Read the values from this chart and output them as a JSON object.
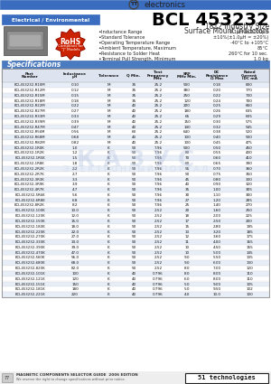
{
  "title": "BCL 453232",
  "subtitle1": "1812 Industry Size",
  "subtitle2": "Surface Mount Inductors",
  "header_label": "Electrical / Environmental",
  "bullet_points": [
    [
      "Inductance Range",
      "0.1μH to 1000μH"
    ],
    [
      "Standard Tolerance",
      "±10%(±1.0μH = ±20%)"
    ],
    [
      "Operating Temperature Range",
      "-40°C to +105°C"
    ],
    [
      "Ambient Temperature, Maximum",
      "85°C"
    ],
    [
      "Resistance to Solder Heat",
      "260°C for 10 sec."
    ],
    [
      "Terminal Pull Strength, Minimum",
      "1.0 kg"
    ]
  ],
  "spec_header": "Specifications",
  "table_data": [
    [
      "BCL453232-R10M",
      "0.10",
      "M",
      "35",
      "25.2",
      "500",
      "0.18",
      "800"
    ],
    [
      "BCL453232-R12M",
      "0.12",
      "M",
      "35",
      "25.2",
      "380",
      "0.20",
      "770"
    ],
    [
      "BCL453232-R15M",
      "0.15",
      "M",
      "35",
      "25.2",
      "250",
      "0.22",
      "730"
    ],
    [
      "BCL453232-R18M",
      "0.18",
      "M",
      "35",
      "25.2",
      "120",
      "0.24",
      "700"
    ],
    [
      "BCL453232-R22M",
      "0.22",
      "M",
      "40",
      "25.2",
      "200",
      "0.25",
      "660"
    ],
    [
      "BCL453232-R27M",
      "0.27",
      "M",
      "40",
      "25.2",
      "180",
      "0.26",
      "635"
    ],
    [
      "BCL453232-R33M",
      "0.33",
      "M",
      "40",
      "25.2",
      "65",
      "0.29",
      "605"
    ],
    [
      "BCL453232-R39M",
      "0.39",
      "M",
      "40",
      "25.2",
      "150",
      "0.30",
      "575"
    ],
    [
      "BCL453232-R47M",
      "0.47",
      "M",
      "40",
      "25.2",
      "140",
      "0.32",
      "545"
    ],
    [
      "BCL453232-R56M",
      "0.56",
      "M",
      "60",
      "25.2",
      "640",
      "0.38",
      "520"
    ],
    [
      "BCL453232-R68M",
      "0.68",
      "M",
      "40",
      "25.2",
      "100",
      "0.40",
      "500"
    ],
    [
      "BCL453232-R82M",
      "0.82",
      "M",
      "40",
      "25.2",
      "100",
      "0.45",
      "475"
    ],
    [
      "BCL453232-1R0K",
      "1.0",
      "K",
      "50",
      "7.96",
      "500",
      "0.50",
      "450"
    ],
    [
      "BCL453232-1R2K",
      "1.2",
      "K",
      "50",
      "7.96",
      "80",
      "0.55",
      "430"
    ],
    [
      "BCL453232-1R5K",
      "1.5",
      "K",
      "50",
      "7.96",
      "70",
      "0.60",
      "410"
    ],
    [
      "BCL453232-1R8K",
      "1.8",
      "K",
      "50",
      "7.96",
      "60",
      "0.65",
      "390"
    ],
    [
      "BCL453232-2R2K",
      "2.2",
      "K",
      "50",
      "7.96",
      "55",
      "0.70",
      "360"
    ],
    [
      "BCL453232-2R7K",
      "2.7",
      "K",
      "50",
      "7.96",
      "50",
      "0.75",
      "350"
    ],
    [
      "BCL453232-3R3K",
      "3.3",
      "K",
      "50",
      "7.96",
      "45",
      "0.80",
      "330"
    ],
    [
      "BCL453232-3R9K",
      "3.9",
      "K",
      "50",
      "7.96",
      "40",
      "0.90",
      "320"
    ],
    [
      "BCL453232-4R7K",
      "4.7",
      "K",
      "50",
      "7.96",
      "35",
      "1.00",
      "305"
    ],
    [
      "BCL453232-5R6K",
      "5.6",
      "K",
      "50",
      "7.96",
      "30",
      "1.10",
      "300"
    ],
    [
      "BCL453232-6R8K",
      "6.8",
      "K",
      "50",
      "7.96",
      "27",
      "1.20",
      "285"
    ],
    [
      "BCL453232-8R2K",
      "8.2",
      "K",
      "50",
      "7.96",
      "25",
      "1.40",
      "270"
    ],
    [
      "BCL453232-100K",
      "10.0",
      "K",
      "50",
      "2.52",
      "20",
      "1.60",
      "250"
    ],
    [
      "BCL453232-120K",
      "12.0",
      "K",
      "50",
      "2.52",
      "18",
      "2.00",
      "225"
    ],
    [
      "BCL453232-150K",
      "15.0",
      "K",
      "50",
      "2.52",
      "17",
      "2.50",
      "200"
    ],
    [
      "BCL453232-180K",
      "18.0",
      "K",
      "50",
      "2.52",
      "15",
      "2.80",
      "195"
    ],
    [
      "BCL453232-220K",
      "22.0",
      "K",
      "50",
      "2.52",
      "13",
      "3.20",
      "185"
    ],
    [
      "BCL453232-270K",
      "27.0",
      "K",
      "50",
      "2.52",
      "12",
      "3.60",
      "175"
    ],
    [
      "BCL453232-330K",
      "33.0",
      "K",
      "50",
      "2.52",
      "11",
      "4.00",
      "165"
    ],
    [
      "BCL453232-390K",
      "39.0",
      "K",
      "50",
      "2.52",
      "10",
      "4.50",
      "155"
    ],
    [
      "BCL453232-470K",
      "47.0",
      "K",
      "50",
      "2.52",
      "10",
      "5.00",
      "145"
    ],
    [
      "BCL453232-560K",
      "56.0",
      "K",
      "50",
      "2.52",
      "9.0",
      "5.50",
      "135"
    ],
    [
      "BCL453232-680K",
      "68.0",
      "K",
      "50",
      "2.52",
      "9.0",
      "6.00",
      "130"
    ],
    [
      "BCL453232-820K",
      "82.0",
      "K",
      "50",
      "2.52",
      "8.0",
      "7.00",
      "120"
    ],
    [
      "BCL453232-101K",
      "100",
      "K",
      "40",
      "0.796",
      "8.0",
      "8.00",
      "110"
    ],
    [
      "BCL453232-121K",
      "120",
      "K",
      "40",
      "0.796",
      "6.0",
      "8.00",
      "110"
    ],
    [
      "BCL453232-151K",
      "150",
      "K",
      "40",
      "0.796",
      "5.0",
      "9.00",
      "105"
    ],
    [
      "BCL453232-181K",
      "180",
      "K",
      "40",
      "0.796",
      "5.0",
      "9.50",
      "102"
    ],
    [
      "BCL453232-221K",
      "220",
      "K",
      "40",
      "0.796",
      "4.0",
      "10.0",
      "100"
    ]
  ],
  "col_header_lines": [
    [
      "Part",
      "Number"
    ],
    [
      "Inductance",
      "μH"
    ],
    [
      "Tolerance"
    ],
    [
      "Q Min."
    ],
    [
      "Test",
      "Frequency",
      "MHz"
    ],
    [
      "SRF",
      "MHz Min."
    ],
    [
      "DC",
      "Resistance",
      "Ω Max"
    ],
    [
      "Rated",
      "Current",
      "IDC mA"
    ]
  ],
  "footer_text": "MAGNETIC COMPONENTS SELECTOR GUIDE  2006 EDITION",
  "footer_sub": "We reserve the right to change specifications without prior notice.",
  "footer_brand": "51 technologies",
  "bg_color": "#ffffff",
  "header_blue": "#3a6cbf",
  "table_header_bg": "#4a7abf",
  "row_alt_bg": "#e8eef7",
  "row_bg": "#ffffff",
  "text_dark": "#111111",
  "text_white": "#ffffff",
  "title_color": "#000000"
}
